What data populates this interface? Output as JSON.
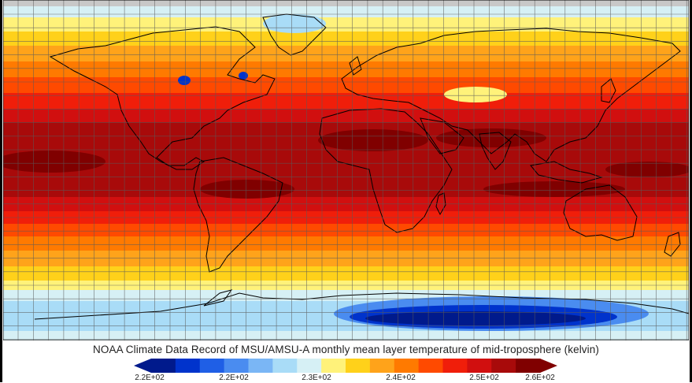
{
  "caption": "NOAA Climate Data Record of MSU/AMSU-A monthly mean layer temperature of mid-troposphere (kelvin)",
  "colorbar": {
    "colors": [
      "#001a8c",
      "#0033cc",
      "#1f5fe6",
      "#4a8cf0",
      "#7ab6f5",
      "#a9dcf7",
      "#d6f0f5",
      "#fff27a",
      "#ffd11a",
      "#ffa31a",
      "#ff7a00",
      "#ff4a00",
      "#f01e0a",
      "#d10f0f",
      "#a80a0a",
      "#800000"
    ],
    "tick_labels": [
      "2.2E+02",
      "2.2E+02",
      "2.3E+02",
      "2.4E+02",
      "2.5E+02",
      "2.6E+02"
    ]
  },
  "map": {
    "projection": "equirectangular",
    "gridlines": true,
    "colors": {
      "polar_cold": "#001a8c",
      "deep_blue": "#0033cc",
      "mid_blue": "#4a8cf0",
      "light_blue": "#a9dcf7",
      "pale": "#d6f0f5",
      "yellow": "#fff27a",
      "gold": "#ffd11a",
      "orange": "#ffa31a",
      "dark_orange": "#ff7a00",
      "red_orange": "#ff4a00",
      "red": "#f01e0a",
      "dark_red": "#d10f0f",
      "crimson": "#a80a0a",
      "maroon": "#800000",
      "no_data": "#c8c8c8"
    }
  }
}
